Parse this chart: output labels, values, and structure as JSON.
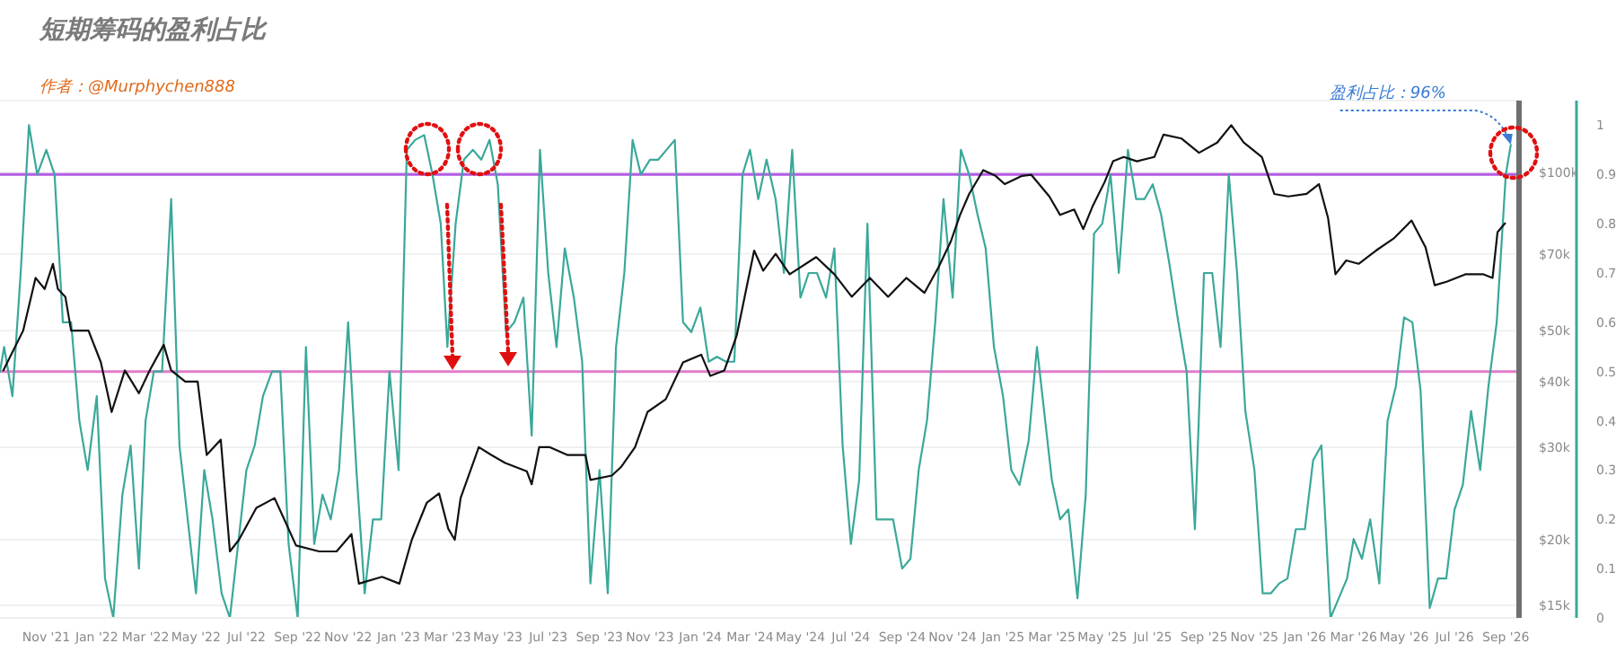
{
  "chart_data": {
    "type": "line",
    "title": "短期筹码的盈利占比",
    "annotations": [
      "作者：@Murphychen888",
      {
        "text": "盈利占比：96%",
        "x": "2026-09-07",
        "y": 113000
      }
    ],
    "xlim": [
      "2021-09-06",
      "2026-09-17"
    ],
    "xticks": [
      {
        "value": "2021-11",
        "label": "Nov '21"
      },
      {
        "value": "2022-01",
        "label": "Jan '22"
      },
      {
        "value": "2022-03",
        "label": "Mar '22"
      },
      {
        "value": "2022-05",
        "label": "May '22"
      },
      {
        "value": "2022-07",
        "label": "Jul '22"
      },
      {
        "value": "2022-09",
        "label": "Sep '22"
      },
      {
        "value": "2022-11",
        "label": "Nov '22"
      },
      {
        "value": "2023-01",
        "label": "Jan '23"
      },
      {
        "value": "2023-03",
        "label": "Mar '23"
      },
      {
        "value": "2023-05",
        "label": "May '23"
      },
      {
        "value": "2023-07",
        "label": "Jul '23"
      },
      {
        "value": "2023-09",
        "label": "Sep '23"
      },
      {
        "value": "2023-11",
        "label": "Nov '23"
      },
      {
        "value": "2024-01",
        "label": "Jan '24"
      },
      {
        "value": "2024-03",
        "label": "Mar '24"
      },
      {
        "value": "2024-05",
        "label": "May '24"
      },
      {
        "value": "2024-07",
        "label": "Jul '24"
      },
      {
        "value": "2024-09",
        "label": "Sep '24"
      },
      {
        "value": "2024-11",
        "label": "Nov '24"
      },
      {
        "value": "2025-01",
        "label": "Jan '25"
      },
      {
        "value": "2025-03",
        "label": "Mar '25"
      },
      {
        "value": "2025-05",
        "label": "May '25"
      },
      {
        "value": "2025-07",
        "label": "Jul '25"
      },
      {
        "value": "2025-09",
        "label": "Sep '25"
      },
      {
        "value": "2025-11",
        "label": "Nov '25"
      },
      {
        "value": "2026-01",
        "label": "Jan '26"
      },
      {
        "value": "2026-03",
        "label": "Mar '26"
      },
      {
        "value": "2026-05",
        "label": "May '26"
      },
      {
        "value": "2026-07",
        "label": "Jul '26"
      },
      {
        "value": "2026-09",
        "label": "Sep '26"
      }
    ],
    "log": "y",
    "ylim": [
      14200,
      137000
    ],
    "yticks": [
      {
        "value": 15000,
        "label": "$15k"
      },
      {
        "value": 20000,
        "label": "$20k"
      },
      {
        "value": 30000,
        "label": "$30k"
      },
      {
        "value": 40000,
        "label": "$40k"
      },
      {
        "value": 50000,
        "label": "$50k"
      },
      {
        "value": 70000,
        "label": "$70k"
      },
      {
        "value": 100000,
        "label": "$100k"
      }
    ],
    "y2lim": [
      0,
      1.05
    ],
    "y2ticks": [
      0,
      0.1,
      0.2,
      0.3,
      0.4,
      0.5,
      0.6,
      0.7,
      0.8,
      0.9,
      1
    ],
    "grid": "y",
    "ref_lines": [
      {
        "axis": "y2",
        "value": 0.9,
        "color": "#b45ae6"
      },
      {
        "axis": "y2",
        "value": 0.5,
        "color": "#e07cc8"
      }
    ],
    "series": [
      {
        "color": "#3aa89a",
        "axis": "y2",
        "x": [
          "2021-09-06",
          "2021-09-11",
          "2021-09-21",
          "2021-10-01",
          "2021-10-11",
          "2021-10-21",
          "2021-11-01",
          "2021-11-11",
          "2021-11-21",
          "2021-12-01",
          "2021-12-11",
          "2021-12-21",
          "2022-01-01",
          "2022-01-11",
          "2022-01-21",
          "2022-02-01",
          "2022-02-11",
          "2022-02-21",
          "2022-03-01",
          "2022-03-11",
          "2022-03-21",
          "2022-04-01",
          "2022-04-11",
          "2022-04-21",
          "2022-05-01",
          "2022-05-11",
          "2022-05-21",
          "2022-06-01",
          "2022-06-11",
          "2022-06-21",
          "2022-07-01",
          "2022-07-11",
          "2022-07-21",
          "2022-08-01",
          "2022-08-11",
          "2022-08-21",
          "2022-09-01",
          "2022-09-11",
          "2022-09-21",
          "2022-10-01",
          "2022-10-11",
          "2022-10-21",
          "2022-11-01",
          "2022-11-11",
          "2022-11-21",
          "2022-12-01",
          "2022-12-11",
          "2022-12-21",
          "2023-01-01",
          "2023-01-11",
          "2023-01-21",
          "2023-02-01",
          "2023-02-11",
          "2023-02-21",
          "2023-03-01",
          "2023-03-11",
          "2023-03-21",
          "2023-04-01",
          "2023-04-11",
          "2023-04-21",
          "2023-05-01",
          "2023-05-11",
          "2023-05-21",
          "2023-06-01",
          "2023-06-11",
          "2023-06-21",
          "2023-07-01",
          "2023-07-11",
          "2023-07-21",
          "2023-08-01",
          "2023-08-11",
          "2023-08-21",
          "2023-09-01",
          "2023-09-11",
          "2023-09-21",
          "2023-10-01",
          "2023-10-11",
          "2023-10-21",
          "2023-11-01",
          "2023-11-11",
          "2023-11-21",
          "2023-12-01",
          "2023-12-11",
          "2023-12-21",
          "2024-01-01",
          "2024-01-11",
          "2024-01-21",
          "2024-02-01",
          "2024-02-11",
          "2024-02-21",
          "2024-03-01",
          "2024-03-11",
          "2024-03-21",
          "2024-04-01",
          "2024-04-11",
          "2024-04-21",
          "2024-05-01",
          "2024-05-11",
          "2024-05-21",
          "2024-06-01",
          "2024-06-11",
          "2024-06-21",
          "2024-07-01",
          "2024-07-11",
          "2024-07-21",
          "2024-08-01",
          "2024-08-11",
          "2024-08-21",
          "2024-09-01",
          "2024-09-11",
          "2024-09-21",
          "2024-10-01",
          "2024-10-11",
          "2024-10-21",
          "2024-11-01",
          "2024-11-11",
          "2024-11-21",
          "2024-12-01",
          "2024-12-11",
          "2024-12-21",
          "2025-01-01",
          "2025-01-11",
          "2025-01-21",
          "2025-02-01",
          "2025-02-11",
          "2025-02-21",
          "2025-03-01",
          "2025-03-11",
          "2025-03-21",
          "2025-04-01",
          "2025-04-11",
          "2025-04-21",
          "2025-05-01",
          "2025-05-11",
          "2025-05-21",
          "2025-06-01",
          "2025-06-11",
          "2025-06-21",
          "2025-07-01",
          "2025-07-11",
          "2025-07-21",
          "2025-08-01",
          "2025-08-11",
          "2025-08-21",
          "2025-09-01",
          "2025-09-11",
          "2025-09-21",
          "2025-10-01",
          "2025-10-11",
          "2025-10-21",
          "2025-11-01",
          "2025-11-11",
          "2025-11-21",
          "2025-12-01",
          "2025-12-11",
          "2025-12-21",
          "2026-01-01",
          "2026-01-11",
          "2026-01-21",
          "2026-02-01",
          "2026-02-11",
          "2026-02-21",
          "2026-03-01",
          "2026-03-11",
          "2026-03-21",
          "2026-04-01",
          "2026-04-11",
          "2026-04-21",
          "2026-05-01",
          "2026-05-11",
          "2026-05-21",
          "2026-06-01",
          "2026-06-11",
          "2026-06-21",
          "2026-07-01",
          "2026-07-11",
          "2026-07-21",
          "2026-08-01",
          "2026-08-11",
          "2026-08-21",
          "2026-09-01",
          "2026-09-07"
        ],
        "values": [
          0.5,
          0.55,
          0.45,
          0.7,
          1.0,
          0.9,
          0.95,
          0.9,
          0.6,
          0.6,
          0.4,
          0.3,
          0.45,
          0.08,
          0.0,
          0.25,
          0.35,
          0.1,
          0.4,
          0.5,
          0.5,
          0.85,
          0.35,
          0.2,
          0.05,
          0.3,
          0.2,
          0.05,
          0.0,
          0.15,
          0.3,
          0.35,
          0.45,
          0.5,
          0.5,
          0.15,
          0.0,
          0.55,
          0.15,
          0.25,
          0.2,
          0.3,
          0.6,
          0.3,
          0.05,
          0.2,
          0.2,
          0.5,
          0.3,
          0.95,
          0.97,
          0.98,
          0.9,
          0.8,
          0.55,
          0.8,
          0.93,
          0.95,
          0.93,
          0.97,
          0.88,
          0.58,
          0.6,
          0.65,
          0.37,
          0.95,
          0.7,
          0.55,
          0.75,
          0.65,
          0.52,
          0.07,
          0.3,
          0.05,
          0.55,
          0.7,
          0.97,
          0.9,
          0.93,
          0.93,
          0.95,
          0.97,
          0.6,
          0.58,
          0.63,
          0.52,
          0.53,
          0.52,
          0.52,
          0.9,
          0.95,
          0.85,
          0.93,
          0.85,
          0.7,
          0.95,
          0.65,
          0.7,
          0.7,
          0.65,
          0.75,
          0.35,
          0.15,
          0.28,
          0.8,
          0.2,
          0.2,
          0.2,
          0.1,
          0.12,
          0.3,
          0.4,
          0.6,
          0.85,
          0.65,
          0.95,
          0.9,
          0.82,
          0.75,
          0.55,
          0.45,
          0.3,
          0.27,
          0.36,
          0.55,
          0.4,
          0.28,
          0.2,
          0.22,
          0.04,
          0.25,
          0.78,
          0.8,
          0.9,
          0.7,
          0.95,
          0.85,
          0.85,
          0.88,
          0.82,
          0.72,
          0.6,
          0.5,
          0.18,
          0.7,
          0.7,
          0.55,
          0.9,
          0.7,
          0.42,
          0.3,
          0.05,
          0.05,
          0.07,
          0.08,
          0.18,
          0.18,
          0.32,
          0.35,
          0.0,
          0.04,
          0.08,
          0.16,
          0.12,
          0.2,
          0.07,
          0.4,
          0.47,
          0.61,
          0.6,
          0.46,
          0.02,
          0.08,
          0.08,
          0.22,
          0.27,
          0.42,
          0.3,
          0.47,
          0.6,
          0.9,
          0.96
        ]
      },
      {
        "color": "#111111",
        "x": [
          "2021-09-10",
          "2021-10-04",
          "2021-10-19",
          "2021-10-30",
          "2021-11-09",
          "2021-11-15",
          "2021-11-24",
          "2021-12-01",
          "2021-12-22",
          "2022-01-06",
          "2022-01-19",
          "2022-02-04",
          "2022-02-21",
          "2022-03-06",
          "2022-03-23",
          "2022-04-01",
          "2022-04-18",
          "2022-05-03",
          "2022-05-14",
          "2022-05-31",
          "2022-06-11",
          "2022-06-22",
          "2022-07-13",
          "2022-08-04",
          "2022-08-15",
          "2022-08-30",
          "2022-09-27",
          "2022-10-18",
          "2022-11-05",
          "2022-11-14",
          "2022-12-12",
          "2023-01-02",
          "2023-01-17",
          "2023-02-04",
          "2023-02-19",
          "2023-03-02",
          "2023-03-10",
          "2023-03-17",
          "2023-04-08",
          "2023-04-23",
          "2023-05-10",
          "2023-06-05",
          "2023-06-11",
          "2023-06-20",
          "2023-07-03",
          "2023-07-24",
          "2023-08-15",
          "2023-08-21",
          "2023-09-16",
          "2023-09-27",
          "2023-10-14",
          "2023-10-29",
          "2023-11-20",
          "2023-12-11",
          "2024-01-02",
          "2024-01-13",
          "2024-01-30",
          "2024-02-14",
          "2024-03-06",
          "2024-03-17",
          "2024-04-01",
          "2024-04-18",
          "2024-05-20",
          "2024-06-11",
          "2024-07-02",
          "2024-07-24",
          "2024-08-15",
          "2024-09-06",
          "2024-09-28",
          "2024-10-15",
          "2024-10-30",
          "2024-11-10",
          "2024-11-21",
          "2024-12-08",
          "2024-12-23",
          "2025-01-03",
          "2025-01-24",
          "2025-02-04",
          "2025-02-26",
          "2025-03-11",
          "2025-03-28",
          "2025-04-08",
          "2025-04-19",
          "2025-05-04",
          "2025-05-14",
          "2025-05-27",
          "2025-06-12",
          "2025-07-03",
          "2025-07-14",
          "2025-08-05",
          "2025-08-26",
          "2025-09-17",
          "2025-10-04",
          "2025-10-19",
          "2025-11-10",
          "2025-11-25",
          "2025-12-12",
          "2026-01-03",
          "2026-01-18",
          "2026-01-29",
          "2026-02-07",
          "2026-02-20",
          "2026-03-07",
          "2026-03-28",
          "2026-04-19",
          "2026-05-10",
          "2026-05-27",
          "2026-06-07",
          "2026-06-22",
          "2026-07-14",
          "2026-08-05",
          "2026-08-16",
          "2026-08-22",
          "2026-08-31"
        ],
        "values": [
          42000,
          50000,
          63000,
          60000,
          67000,
          60000,
          58000,
          50000,
          50000,
          43500,
          35000,
          42000,
          38000,
          42000,
          47000,
          42000,
          40000,
          40000,
          29000,
          31000,
          19000,
          20000,
          23000,
          24000,
          22000,
          19500,
          19000,
          19000,
          20500,
          16500,
          17000,
          16500,
          20000,
          23500,
          24500,
          21000,
          20000,
          24000,
          30000,
          29000,
          28000,
          27000,
          25500,
          30000,
          30000,
          29000,
          29000,
          26000,
          26500,
          27500,
          30000,
          35000,
          37000,
          43500,
          45000,
          41000,
          42000,
          49000,
          71000,
          65000,
          70000,
          64000,
          69000,
          64000,
          58000,
          63000,
          58000,
          63000,
          59000,
          66000,
          74000,
          83000,
          91000,
          101000,
          98500,
          95000,
          98500,
          99000,
          90000,
          83000,
          85000,
          78000,
          86000,
          96000,
          105000,
          107000,
          105000,
          107000,
          118000,
          116000,
          109000,
          114000,
          123000,
          114000,
          107000,
          91000,
          90000,
          91000,
          95000,
          82000,
          64000,
          68000,
          67000,
          71000,
          75000,
          81000,
          72000,
          61000,
          62000,
          64000,
          64000,
          63000,
          77000,
          80000
        ]
      }
    ]
  }
}
